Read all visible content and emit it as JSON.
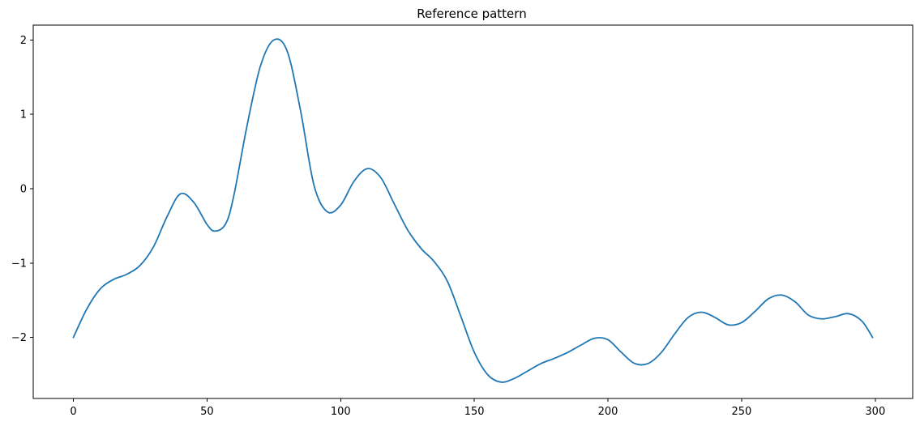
{
  "chart_data": {
    "type": "line",
    "title": "Reference pattern",
    "xlabel": "",
    "ylabel": "",
    "xlim": [
      -15,
      314
    ],
    "ylim": [
      -2.82,
      2.2
    ],
    "x_ticks": [
      {
        "value": 0,
        "label": "0"
      },
      {
        "value": 50,
        "label": "50"
      },
      {
        "value": 100,
        "label": "100"
      },
      {
        "value": 150,
        "label": "150"
      },
      {
        "value": 200,
        "label": "200"
      },
      {
        "value": 250,
        "label": "250"
      },
      {
        "value": 300,
        "label": "300"
      }
    ],
    "y_ticks": [
      {
        "value": 2,
        "label": "2"
      },
      {
        "value": 1,
        "label": "1"
      },
      {
        "value": 0,
        "label": "0"
      },
      {
        "value": -1,
        "label": "−1"
      },
      {
        "value": -2,
        "label": "−2"
      }
    ],
    "grid": false,
    "series": [
      {
        "color": "#1f77b4",
        "points": [
          [
            0,
            -2.0
          ],
          [
            5,
            -1.62
          ],
          [
            10,
            -1.35
          ],
          [
            15,
            -1.22
          ],
          [
            20,
            -1.15
          ],
          [
            25,
            -1.03
          ],
          [
            30,
            -0.78
          ],
          [
            35,
            -0.38
          ],
          [
            40,
            -0.07
          ],
          [
            45,
            -0.18
          ],
          [
            50,
            -0.48
          ],
          [
            53,
            -0.57
          ],
          [
            57,
            -0.47
          ],
          [
            60,
            -0.1
          ],
          [
            65,
            0.85
          ],
          [
            70,
            1.65
          ],
          [
            75,
            2.0
          ],
          [
            80,
            1.85
          ],
          [
            85,
            1.05
          ],
          [
            90,
            0.05
          ],
          [
            95,
            -0.31
          ],
          [
            100,
            -0.22
          ],
          [
            105,
            0.1
          ],
          [
            110,
            0.27
          ],
          [
            115,
            0.15
          ],
          [
            120,
            -0.2
          ],
          [
            125,
            -0.55
          ],
          [
            130,
            -0.8
          ],
          [
            135,
            -0.98
          ],
          [
            140,
            -1.25
          ],
          [
            145,
            -1.72
          ],
          [
            150,
            -2.2
          ],
          [
            155,
            -2.5
          ],
          [
            160,
            -2.6
          ],
          [
            165,
            -2.55
          ],
          [
            170,
            -2.45
          ],
          [
            175,
            -2.35
          ],
          [
            180,
            -2.28
          ],
          [
            185,
            -2.2
          ],
          [
            190,
            -2.1
          ],
          [
            195,
            -2.01
          ],
          [
            200,
            -2.03
          ],
          [
            205,
            -2.2
          ],
          [
            210,
            -2.35
          ],
          [
            215,
            -2.35
          ],
          [
            220,
            -2.2
          ],
          [
            225,
            -1.95
          ],
          [
            230,
            -1.73
          ],
          [
            235,
            -1.66
          ],
          [
            240,
            -1.73
          ],
          [
            245,
            -1.83
          ],
          [
            250,
            -1.8
          ],
          [
            255,
            -1.65
          ],
          [
            260,
            -1.48
          ],
          [
            265,
            -1.43
          ],
          [
            270,
            -1.52
          ],
          [
            275,
            -1.7
          ],
          [
            280,
            -1.75
          ],
          [
            285,
            -1.72
          ],
          [
            290,
            -1.68
          ],
          [
            295,
            -1.78
          ],
          [
            299,
            -2.0
          ]
        ]
      }
    ]
  }
}
